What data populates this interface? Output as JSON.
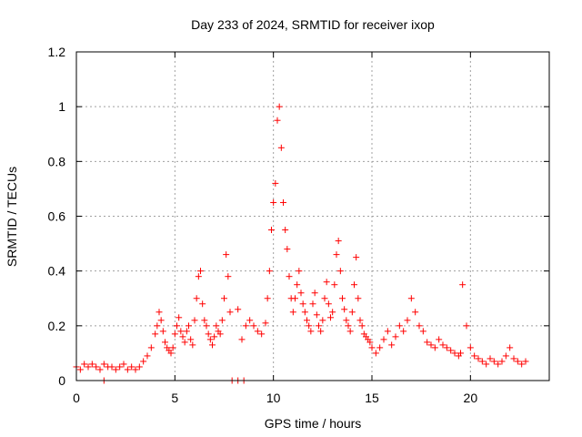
{
  "chart_data": {
    "type": "scatter",
    "title": "Day 233 of 2024, SRMTID for receiver ixop",
    "xlabel": "GPS time / hours",
    "ylabel": "SRMTID / TECUs",
    "xlim": [
      0,
      24
    ],
    "ylim": [
      0,
      1.2
    ],
    "x_ticks": [
      0,
      5,
      10,
      15,
      20
    ],
    "x_tick_labels": [
      "0",
      "5",
      "10",
      "15",
      "20"
    ],
    "y_ticks": [
      0,
      0.2,
      0.4,
      0.6,
      0.8,
      1.0,
      1.2
    ],
    "y_tick_labels": [
      "0",
      "0.2",
      "0.4",
      "0.6",
      "0.8",
      "1",
      "1.2"
    ],
    "grid": true,
    "marker": "+",
    "color": "#ff0000",
    "series": [
      {
        "name": "SRMTID",
        "x": [
          0.0,
          0.2,
          0.4,
          0.6,
          0.8,
          1.0,
          1.2,
          1.4,
          1.6,
          1.8,
          2.0,
          2.2,
          2.4,
          2.6,
          2.8,
          3.0,
          3.2,
          3.4,
          3.6,
          3.8,
          4.0,
          4.1,
          4.2,
          4.3,
          4.4,
          4.5,
          4.6,
          4.7,
          4.8,
          4.9,
          5.0,
          5.1,
          5.2,
          5.3,
          5.4,
          5.5,
          5.6,
          5.7,
          5.8,
          5.9,
          6.0,
          6.1,
          6.2,
          6.3,
          6.4,
          6.5,
          6.6,
          6.7,
          6.8,
          6.9,
          7.0,
          7.1,
          7.2,
          7.3,
          7.4,
          7.5,
          7.6,
          7.7,
          7.8,
          8.2,
          8.4,
          8.6,
          8.8,
          9.0,
          9.2,
          9.4,
          9.6,
          9.7,
          9.8,
          9.9,
          10.0,
          10.1,
          10.2,
          10.3,
          10.4,
          10.5,
          10.6,
          10.7,
          10.8,
          10.9,
          11.0,
          11.1,
          11.2,
          11.3,
          11.4,
          11.5,
          11.6,
          11.7,
          11.8,
          11.9,
          12.0,
          12.1,
          12.2,
          12.3,
          12.4,
          12.5,
          12.6,
          12.7,
          12.8,
          12.9,
          13.0,
          13.1,
          13.2,
          13.3,
          13.4,
          13.5,
          13.6,
          13.7,
          13.8,
          13.9,
          14.0,
          14.1,
          14.2,
          14.3,
          14.4,
          14.5,
          14.6,
          14.7,
          14.8,
          14.9,
          15.0,
          15.2,
          15.4,
          15.6,
          15.8,
          16.0,
          16.2,
          16.4,
          16.6,
          16.8,
          17.0,
          17.2,
          17.4,
          17.6,
          17.8,
          18.0,
          18.2,
          18.4,
          18.6,
          18.8,
          19.0,
          19.2,
          19.4,
          19.5,
          19.6,
          19.8,
          20.0,
          20.2,
          20.4,
          20.6,
          20.8,
          21.0,
          21.2,
          21.4,
          21.6,
          21.8,
          22.0,
          22.2,
          22.4,
          22.6,
          22.8,
          1.4,
          7.9,
          8.2,
          8.5
        ],
        "y": [
          0.05,
          0.04,
          0.06,
          0.05,
          0.06,
          0.05,
          0.04,
          0.06,
          0.05,
          0.05,
          0.04,
          0.05,
          0.06,
          0.04,
          0.05,
          0.04,
          0.05,
          0.07,
          0.09,
          0.12,
          0.17,
          0.2,
          0.25,
          0.22,
          0.18,
          0.14,
          0.12,
          0.11,
          0.1,
          0.12,
          0.17,
          0.2,
          0.23,
          0.18,
          0.16,
          0.14,
          0.18,
          0.2,
          0.15,
          0.13,
          0.22,
          0.3,
          0.38,
          0.4,
          0.28,
          0.22,
          0.2,
          0.17,
          0.15,
          0.13,
          0.16,
          0.2,
          0.18,
          0.17,
          0.22,
          0.3,
          0.46,
          0.38,
          0.25,
          0.26,
          0.15,
          0.2,
          0.22,
          0.2,
          0.18,
          0.17,
          0.21,
          0.3,
          0.4,
          0.55,
          0.65,
          0.72,
          0.95,
          1.0,
          0.85,
          0.65,
          0.55,
          0.48,
          0.38,
          0.3,
          0.25,
          0.3,
          0.35,
          0.4,
          0.32,
          0.28,
          0.25,
          0.22,
          0.2,
          0.18,
          0.28,
          0.32,
          0.24,
          0.2,
          0.18,
          0.22,
          0.3,
          0.36,
          0.28,
          0.23,
          0.25,
          0.35,
          0.46,
          0.51,
          0.4,
          0.3,
          0.26,
          0.22,
          0.2,
          0.18,
          0.25,
          0.35,
          0.45,
          0.3,
          0.22,
          0.2,
          0.17,
          0.16,
          0.15,
          0.14,
          0.12,
          0.1,
          0.12,
          0.15,
          0.18,
          0.13,
          0.16,
          0.2,
          0.18,
          0.22,
          0.3,
          0.25,
          0.2,
          0.18,
          0.14,
          0.13,
          0.12,
          0.15,
          0.13,
          0.12,
          0.11,
          0.1,
          0.09,
          0.1,
          0.35,
          0.2,
          0.12,
          0.09,
          0.08,
          0.07,
          0.06,
          0.08,
          0.07,
          0.06,
          0.07,
          0.09,
          0.12,
          0.08,
          0.07,
          0.06,
          0.07,
          0.0,
          0.0,
          0.0,
          0.0
        ]
      }
    ]
  }
}
